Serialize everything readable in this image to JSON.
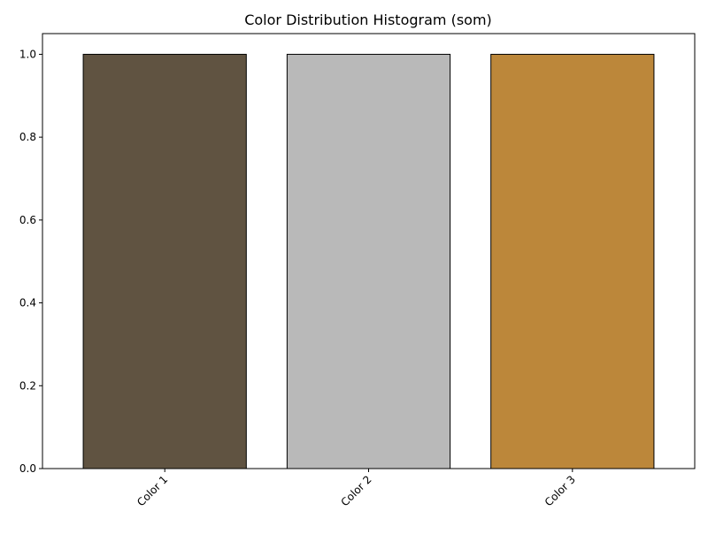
{
  "chart_data": {
    "type": "bar",
    "title": "Color Distribution Histogram (som)",
    "xlabel": "",
    "ylabel": "",
    "categories": [
      "Color 1",
      "Color 2",
      "Color 3"
    ],
    "values": [
      1.0,
      1.0,
      1.0
    ],
    "bar_colors": [
      "#605341",
      "#b9b9b9",
      "#bc873a"
    ],
    "bar_edge_color": "#000000",
    "ylim": [
      0,
      1.05
    ],
    "y_ticks": [
      0.0,
      0.2,
      0.4,
      0.6,
      0.8,
      1.0
    ],
    "y_tick_labels": [
      "0.0",
      "0.2",
      "0.4",
      "0.6",
      "0.8",
      "1.0"
    ],
    "x_tick_rotation_deg": 45,
    "grid": false,
    "legend": "none"
  }
}
